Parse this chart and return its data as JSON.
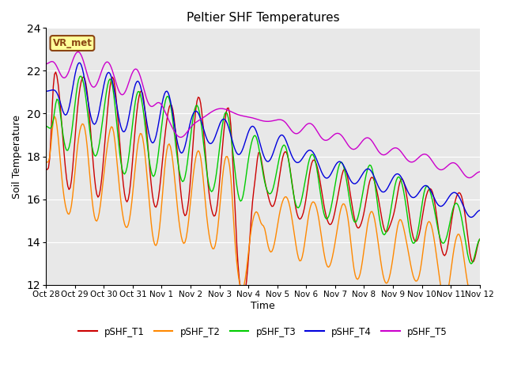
{
  "title": "Peltier SHF Temperatures",
  "xlabel": "Time",
  "ylabel": "Soil Temperature",
  "ylim": [
    12,
    24
  ],
  "yticks": [
    12,
    14,
    16,
    18,
    20,
    22,
    24
  ],
  "fig_bg": "#ffffff",
  "plot_bg": "#e8e8e8",
  "annotation_text": "VR_met",
  "annotation_bg": "#ffff99",
  "annotation_border": "#8b4513",
  "series_names": [
    "pSHF_T1",
    "pSHF_T2",
    "pSHF_T3",
    "pSHF_T4",
    "pSHF_T5"
  ],
  "series_colors": [
    "#cc0000",
    "#ff8800",
    "#00cc00",
    "#0000dd",
    "#cc00cc"
  ],
  "series_lw": [
    1.0,
    1.0,
    1.0,
    1.0,
    1.0
  ],
  "x_tick_labels": [
    "Oct 28",
    "Oct 29",
    "Oct 30",
    "Oct 31",
    "Nov 1",
    "Nov 2",
    "Nov 3",
    "Nov 4",
    "Nov 5",
    "Nov 6",
    "Nov 7",
    "Nov 8",
    "Nov 9",
    "Nov 10",
    "Nov 11",
    "Nov 12"
  ],
  "n_points": 360,
  "n_days": 15
}
